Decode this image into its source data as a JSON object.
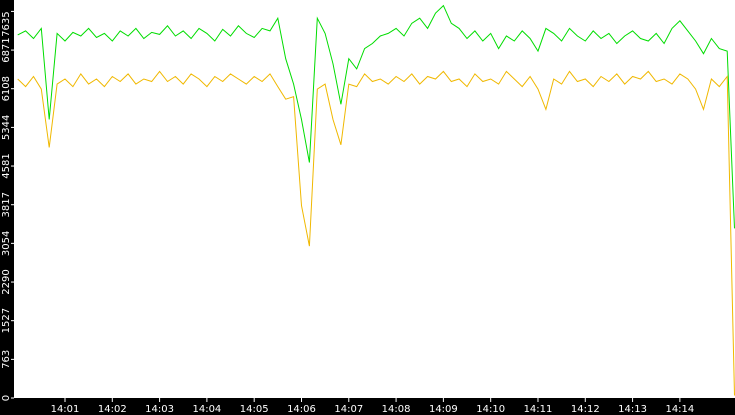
{
  "chart_data": {
    "type": "line",
    "categories": [
      null,
      null,
      null,
      null,
      null,
      null,
      "14:01",
      null,
      null,
      null,
      null,
      null,
      "14:02",
      null,
      null,
      null,
      null,
      null,
      "14:03",
      null,
      null,
      null,
      null,
      null,
      "14:04",
      null,
      null,
      null,
      null,
      null,
      "14:05",
      null,
      null,
      null,
      null,
      null,
      "14:06",
      null,
      null,
      null,
      null,
      null,
      "14:07",
      null,
      null,
      null,
      null,
      null,
      "14:08",
      null,
      null,
      null,
      null,
      null,
      "14:09",
      null,
      null,
      null,
      null,
      null,
      "14:10",
      null,
      null,
      null,
      null,
      null,
      "14:11",
      null,
      null,
      null,
      null,
      null,
      "14:12",
      null,
      null,
      null,
      null,
      null,
      "14:13",
      null,
      null,
      null,
      null,
      null,
      "14:14",
      null,
      null,
      null,
      null,
      null,
      null,
      null
    ],
    "series": [
      {
        "color": "#00dd00",
        "values": [
          7170,
          7250,
          7100,
          7300,
          5500,
          7200,
          7050,
          7220,
          7150,
          7300,
          7120,
          7200,
          7050,
          7250,
          7150,
          7300,
          7100,
          7220,
          7180,
          7350,
          7150,
          7250,
          7100,
          7300,
          7200,
          7050,
          7280,
          7150,
          7350,
          7200,
          7120,
          7300,
          7250,
          7500,
          6700,
          6200,
          5500,
          4650,
          7500,
          7200,
          6600,
          5800,
          6700,
          6500,
          6900,
          7000,
          7150,
          7200,
          7300,
          7150,
          7400,
          7500,
          7300,
          7600,
          7750,
          7400,
          7300,
          7100,
          7250,
          7050,
          7200,
          6900,
          7150,
          7050,
          7250,
          7100,
          6850,
          7300,
          7200,
          7050,
          7300,
          7150,
          7050,
          7250,
          7100,
          7200,
          7000,
          7150,
          7250,
          7100,
          7050,
          7200,
          7000,
          7300,
          7450,
          7250,
          7050,
          6800,
          7100,
          6900,
          6850,
          3350
        ]
      },
      {
        "color": "#f0b800",
        "values": [
          6300,
          6150,
          6350,
          6100,
          4950,
          6200,
          6300,
          6150,
          6400,
          6200,
          6300,
          6150,
          6350,
          6250,
          6400,
          6200,
          6300,
          6250,
          6450,
          6250,
          6350,
          6200,
          6400,
          6300,
          6150,
          6350,
          6250,
          6400,
          6300,
          6200,
          6350,
          6250,
          6400,
          6150,
          5900,
          5950,
          3800,
          3000,
          6100,
          6200,
          5500,
          5000,
          6200,
          6150,
          6400,
          6250,
          6300,
          6200,
          6350,
          6250,
          6400,
          6200,
          6350,
          6300,
          6450,
          6250,
          6300,
          6150,
          6400,
          6250,
          6300,
          6200,
          6450,
          6300,
          6150,
          6350,
          6100,
          5700,
          6300,
          6200,
          6450,
          6250,
          6300,
          6150,
          6350,
          6250,
          6400,
          6200,
          6350,
          6300,
          6450,
          6250,
          6300,
          6200,
          6400,
          6300,
          6100,
          5700,
          6300,
          6150,
          6350,
          50
        ]
      }
    ],
    "ylim": [
      0,
      7860
    ],
    "yticks": [
      0,
      763,
      1527,
      2290,
      3054,
      3817,
      4581,
      5344,
      6108,
      6871,
      7635
    ]
  }
}
